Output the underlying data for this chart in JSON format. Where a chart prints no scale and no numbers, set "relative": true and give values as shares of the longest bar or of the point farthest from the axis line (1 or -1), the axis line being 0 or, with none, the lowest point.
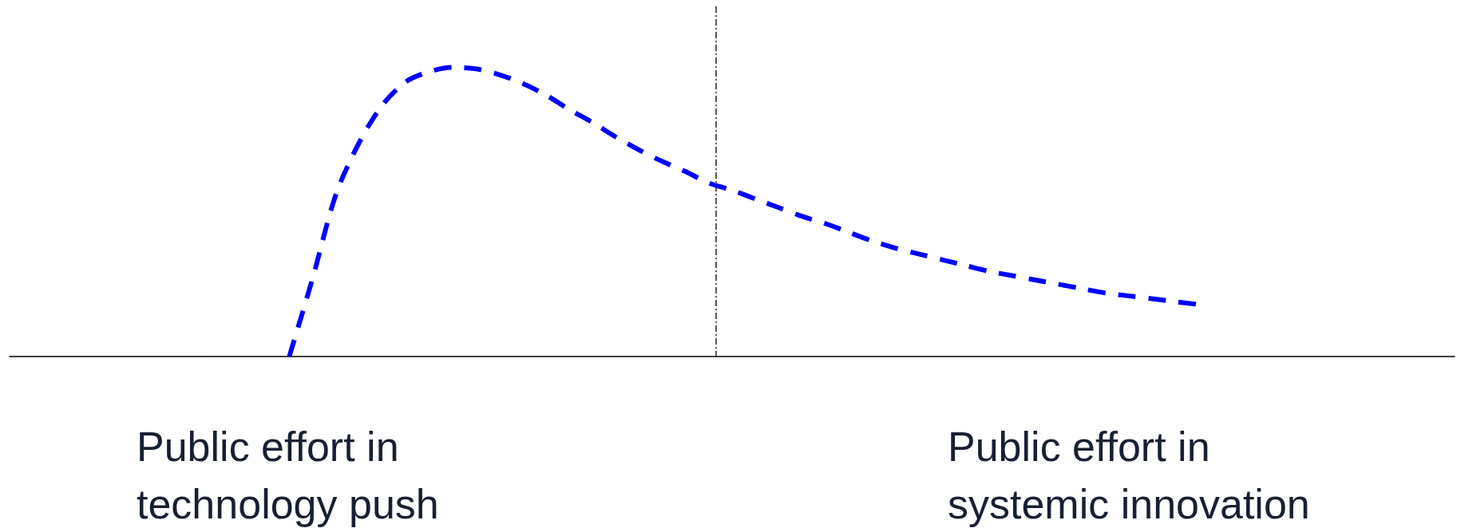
{
  "chart_data": {
    "type": "line",
    "relative": true,
    "categories": [
      null,
      null,
      null,
      null,
      null,
      null,
      null,
      null,
      null,
      null,
      null,
      null,
      null,
      null,
      null,
      null,
      null,
      null,
      null,
      null,
      null,
      null,
      null,
      null,
      null,
      null,
      null,
      null,
      null,
      null,
      null,
      null,
      null,
      null,
      null,
      null,
      null,
      null,
      null,
      null,
      null,
      null,
      null,
      null,
      null,
      null,
      null,
      null,
      null,
      null,
      null,
      null,
      null,
      null,
      null,
      null,
      null,
      null,
      null,
      null,
      null,
      null,
      null
    ],
    "series": [
      {
        "color": "#0000ff",
        "values": [
          null,
          null,
          null,
          null,
          null,
          null,
          null,
          null,
          null,
          null,
          null,
          null,
          0,
          0.27,
          0.56,
          0.74,
          0.87,
          0.95,
          0.985,
          1,
          0.995,
          0.975,
          0.945,
          0.905,
          0.855,
          0.81,
          0.76,
          0.715,
          0.675,
          0.64,
          0.6,
          0.575,
          0.545,
          0.515,
          0.485,
          0.46,
          0.43,
          0.4,
          0.375,
          0.355,
          0.335,
          0.315,
          0.295,
          0.28,
          0.265,
          0.25,
          0.235,
          0.22,
          0.21,
          0.2,
          0.19,
          0.18,
          null,
          null,
          null,
          null,
          null,
          null,
          null,
          null,
          null,
          null,
          null
        ]
      }
    ],
    "line_style": "dashed",
    "marker": "none",
    "grid": false,
    "annotations": [
      "Public effort in\ntechnology push",
      "Public effort in\nsystemic innovation"
    ]
  }
}
